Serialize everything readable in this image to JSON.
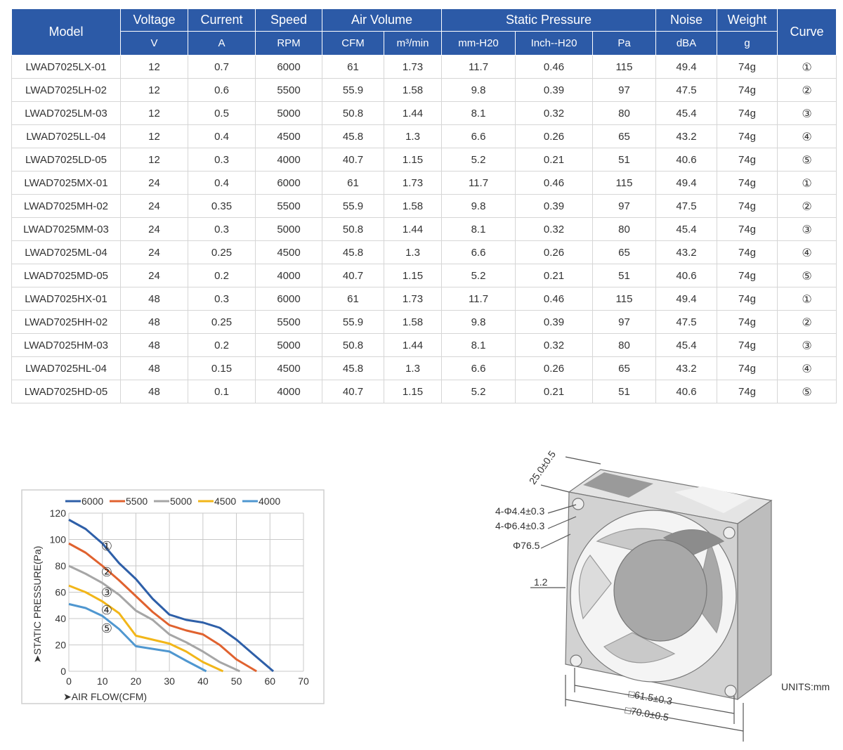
{
  "table": {
    "header": [
      "Model",
      "Voltage",
      "Current",
      "Speed",
      "Air Volume",
      "Static Pressure",
      "Noise",
      "Weight",
      "Curve"
    ],
    "units": [
      "V",
      "A",
      "RPM",
      "CFM",
      "m³/min",
      "mm-H20",
      "Inch--H20",
      "Pa",
      "dBA",
      "g"
    ],
    "rows": [
      [
        "LWAD7025LX-01",
        "12",
        "0.7",
        "6000",
        "61",
        "1.73",
        "11.7",
        "0.46",
        "115",
        "49.4",
        "74g",
        "①"
      ],
      [
        "LWAD7025LH-02",
        "12",
        "0.6",
        "5500",
        "55.9",
        "1.58",
        "9.8",
        "0.39",
        "97",
        "47.5",
        "74g",
        "②"
      ],
      [
        "LWAD7025LM-03",
        "12",
        "0.5",
        "5000",
        "50.8",
        "1.44",
        "8.1",
        "0.32",
        "80",
        "45.4",
        "74g",
        "③"
      ],
      [
        "LWAD7025LL-04",
        "12",
        "0.4",
        "4500",
        "45.8",
        "1.3",
        "6.6",
        "0.26",
        "65",
        "43.2",
        "74g",
        "④"
      ],
      [
        "LWAD7025LD-05",
        "12",
        "0.3",
        "4000",
        "40.7",
        "1.15",
        "5.2",
        "0.21",
        "51",
        "40.6",
        "74g",
        "⑤"
      ],
      [
        "LWAD7025MX-01",
        "24",
        "0.4",
        "6000",
        "61",
        "1.73",
        "11.7",
        "0.46",
        "115",
        "49.4",
        "74g",
        "①"
      ],
      [
        "LWAD7025MH-02",
        "24",
        "0.35",
        "5500",
        "55.9",
        "1.58",
        "9.8",
        "0.39",
        "97",
        "47.5",
        "74g",
        "②"
      ],
      [
        "LWAD7025MM-03",
        "24",
        "0.3",
        "5000",
        "50.8",
        "1.44",
        "8.1",
        "0.32",
        "80",
        "45.4",
        "74g",
        "③"
      ],
      [
        "LWAD7025ML-04",
        "24",
        "0.25",
        "4500",
        "45.8",
        "1.3",
        "6.6",
        "0.26",
        "65",
        "43.2",
        "74g",
        "④"
      ],
      [
        "LWAD7025MD-05",
        "24",
        "0.2",
        "4000",
        "40.7",
        "1.15",
        "5.2",
        "0.21",
        "51",
        "40.6",
        "74g",
        "⑤"
      ],
      [
        "LWAD7025HX-01",
        "48",
        "0.3",
        "6000",
        "61",
        "1.73",
        "11.7",
        "0.46",
        "115",
        "49.4",
        "74g",
        "①"
      ],
      [
        "LWAD7025HH-02",
        "48",
        "0.25",
        "5500",
        "55.9",
        "1.58",
        "9.8",
        "0.39",
        "97",
        "47.5",
        "74g",
        "②"
      ],
      [
        "LWAD7025HM-03",
        "48",
        "0.2",
        "5000",
        "50.8",
        "1.44",
        "8.1",
        "0.32",
        "80",
        "45.4",
        "74g",
        "③"
      ],
      [
        "LWAD7025HL-04",
        "48",
        "0.15",
        "4500",
        "45.8",
        "1.3",
        "6.6",
        "0.26",
        "65",
        "43.2",
        "74g",
        "④"
      ],
      [
        "LWAD7025HD-05",
        "48",
        "0.1",
        "4000",
        "40.7",
        "1.15",
        "5.2",
        "0.21",
        "51",
        "40.6",
        "74g",
        "⑤"
      ]
    ]
  },
  "chart_data": {
    "type": "line",
    "x_label": "➤AIR FLOW(CFM)",
    "y_label": "➤STATIC PRESSURE(Pa)",
    "xlim": [
      0,
      70
    ],
    "xticks": [
      0,
      10,
      20,
      30,
      40,
      50,
      60,
      70
    ],
    "ylim": [
      0,
      120
    ],
    "yticks": [
      0,
      20,
      40,
      60,
      80,
      100,
      120
    ],
    "grid": true,
    "series": [
      {
        "name": "6000",
        "color": "#2e5fa8",
        "x": [
          0,
          5,
          10,
          15,
          20,
          25,
          30,
          35,
          40,
          45,
          50,
          55,
          61
        ],
        "values": [
          115,
          108,
          97,
          82,
          70,
          55,
          43,
          39,
          37,
          33,
          24,
          13,
          0
        ]
      },
      {
        "name": "5500",
        "color": "#e0622f",
        "x": [
          0,
          5,
          10,
          15,
          20,
          25,
          30,
          35,
          40,
          45,
          50,
          56
        ],
        "values": [
          97,
          90,
          80,
          69,
          57,
          45,
          35,
          31,
          28,
          20,
          9,
          0
        ]
      },
      {
        "name": "5000",
        "color": "#a6a6a6",
        "x": [
          0,
          5,
          10,
          15,
          20,
          25,
          30,
          35,
          40,
          45,
          51
        ],
        "values": [
          80,
          74,
          67,
          58,
          46,
          39,
          28,
          22,
          15,
          7,
          0
        ]
      },
      {
        "name": "4500",
        "color": "#f2b619",
        "x": [
          0,
          5,
          10,
          15,
          20,
          25,
          30,
          35,
          40,
          46
        ],
        "values": [
          65,
          60,
          53,
          44,
          27,
          24,
          21,
          15,
          7,
          0
        ]
      },
      {
        "name": "4000",
        "color": "#4f97d0",
        "x": [
          0,
          5,
          10,
          15,
          20,
          25,
          30,
          35,
          41
        ],
        "values": [
          51,
          48,
          42,
          32,
          19,
          17,
          15,
          8,
          0
        ]
      }
    ],
    "curve_labels": [
      "①",
      "②",
      "③",
      "④",
      "⑤"
    ]
  },
  "drawing": {
    "labels": [
      "25.0±0.5",
      "4-Φ4.4±0.3",
      "4-Φ6.4±0.3",
      "Φ76.5",
      "1.2",
      "□61.5±0.3",
      "□70.0±0.5",
      "UNITS:mm"
    ]
  }
}
